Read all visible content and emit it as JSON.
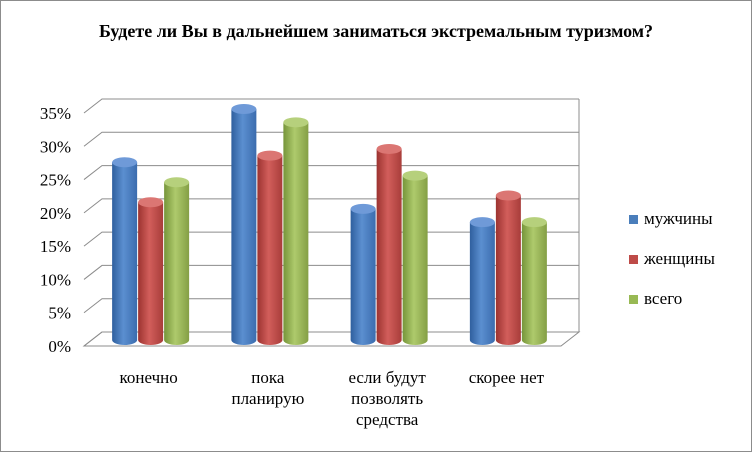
{
  "chart_data": {
    "type": "bar",
    "title": "Будете ли Вы в дальнейшем заниматься экстремальным туризмом?",
    "categories": [
      "конечно",
      "пока планирую",
      "если будут позволять средства",
      "скорее нет"
    ],
    "category_lines": [
      [
        "конечно"
      ],
      [
        "пока",
        "планирую"
      ],
      [
        "если будут",
        "позволять",
        "средства"
      ],
      [
        "скорее нет"
      ]
    ],
    "series": [
      {
        "name": "мужчины",
        "values": [
          27,
          35,
          20,
          18
        ]
      },
      {
        "name": "женщины",
        "values": [
          21,
          28,
          29,
          22
        ]
      },
      {
        "name": "всего",
        "values": [
          24,
          33,
          25,
          18
        ]
      }
    ],
    "ylim": [
      0,
      35
    ],
    "yticks": [
      "0%",
      "5%",
      "10%",
      "15%",
      "20%",
      "25%",
      "30%",
      "35%"
    ],
    "grid": true,
    "legend_position": "right",
    "colors": {
      "мужчины": "#4a7ebb",
      "женщины": "#be4b48",
      "всего": "#98b954"
    }
  }
}
